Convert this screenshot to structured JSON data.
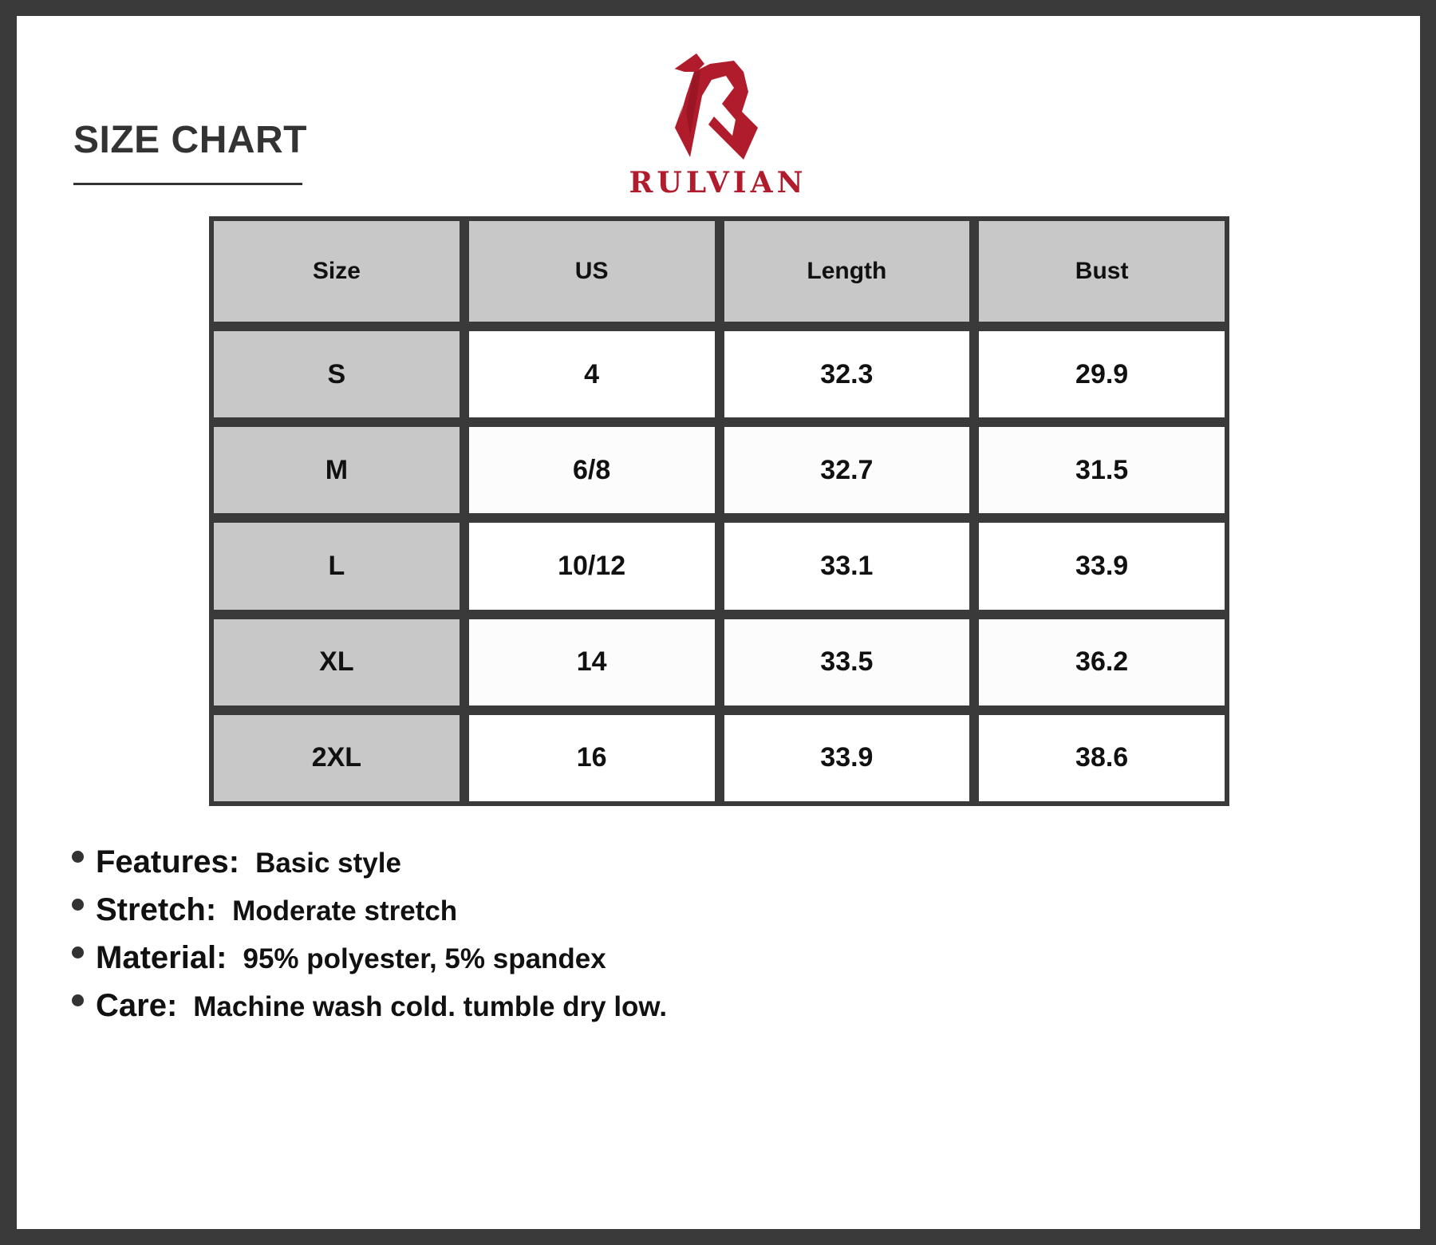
{
  "header": {
    "title": "SIZE CHART",
    "brand": "RULVIAN",
    "brand_color": "#b01c2b"
  },
  "table": {
    "columns": [
      "Size",
      "US",
      "Length",
      "Bust"
    ],
    "rows": [
      [
        "S",
        "4",
        "32.3",
        "29.9"
      ],
      [
        "M",
        "6/8",
        "32.7",
        "31.5"
      ],
      [
        "L",
        "10/12",
        "33.1",
        "33.9"
      ],
      [
        "XL",
        "14",
        "33.5",
        "36.2"
      ],
      [
        "2XL",
        "16",
        "33.9",
        "38.6"
      ]
    ]
  },
  "specs": [
    {
      "label": "Features:",
      "value": "Basic style"
    },
    {
      "label": "Stretch:",
      "value": "Moderate stretch"
    },
    {
      "label": "Material:",
      "value": "95% polyester, 5% spandex"
    },
    {
      "label": "Care:",
      "value": "Machine wash cold. tumble dry low."
    }
  ]
}
